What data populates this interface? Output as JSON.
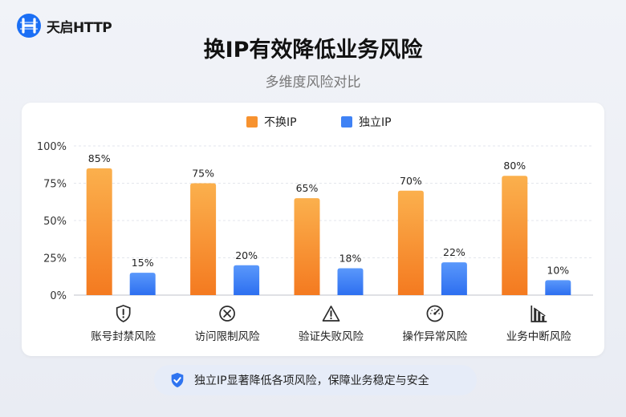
{
  "brand": {
    "name": "天启HTTP",
    "color": "#1b6ff5"
  },
  "title": "换IP有效降低业务风险",
  "subtitle": "多维度风险对比",
  "chart_data": {
    "type": "bar",
    "categories": [
      "账号封禁风险",
      "访问限制风险",
      "验证失败风险",
      "操作异常风险",
      "业务中断风险"
    ],
    "category_icons": [
      "shield-exclamation-icon",
      "prohibited-x-icon",
      "warning-triangle-icon",
      "speedometer-icon",
      "declining-chart-icon"
    ],
    "series": [
      {
        "name": "不换IP",
        "values": [
          85,
          75,
          65,
          70,
          80
        ],
        "labels": [
          "85%",
          "75%",
          "65%",
          "70%",
          "80%"
        ],
        "color": "#f7922f"
      },
      {
        "name": "独立IP",
        "values": [
          15,
          20,
          18,
          22,
          10
        ],
        "labels": [
          "15%",
          "20%",
          "18%",
          "22%",
          "10%"
        ],
        "color": "#3f82f5"
      }
    ],
    "ylim": [
      0,
      100
    ],
    "yticks": [
      "0%",
      "25%",
      "50%",
      "75%",
      "100%"
    ],
    "ytick_values": [
      0,
      25,
      50,
      75,
      100
    ],
    "grid": true,
    "legend": "top-center"
  },
  "footer": {
    "text": "独立IP显著降低各项风险，保障业务稳定与安全",
    "icon": "shield-check-icon"
  }
}
